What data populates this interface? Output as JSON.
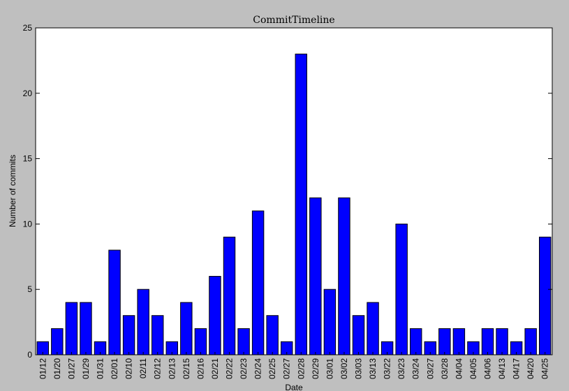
{
  "chart_data": {
    "type": "bar",
    "title": "CommitTimeline",
    "xlabel": "Date",
    "ylabel": "Number of commits",
    "ylim": [
      0,
      25
    ],
    "yticks": [
      0,
      5,
      10,
      15,
      20,
      25
    ],
    "grid": false,
    "legend": "none",
    "bar_color": "#0000ff",
    "background_color": "#bfbfbf",
    "plot_background_color": "#ffffff",
    "categories": [
      "01/12",
      "01/20",
      "01/27",
      "01/29",
      "01/31",
      "02/01",
      "02/10",
      "02/11",
      "02/12",
      "02/13",
      "02/15",
      "02/16",
      "02/21",
      "02/22",
      "02/23",
      "02/24",
      "02/25",
      "02/27",
      "02/28",
      "02/29",
      "03/01",
      "03/02",
      "03/03",
      "03/13",
      "03/22",
      "03/23",
      "03/24",
      "03/27",
      "03/28",
      "04/04",
      "04/05",
      "04/06",
      "04/13",
      "04/17",
      "04/20",
      "04/25"
    ],
    "values": [
      1,
      2,
      4,
      4,
      1,
      8,
      3,
      5,
      3,
      1,
      4,
      2,
      6,
      9,
      2,
      11,
      3,
      1,
      23,
      12,
      5,
      12,
      3,
      4,
      1,
      10,
      2,
      1,
      2,
      2,
      1,
      2,
      2,
      1,
      2,
      9
    ]
  }
}
